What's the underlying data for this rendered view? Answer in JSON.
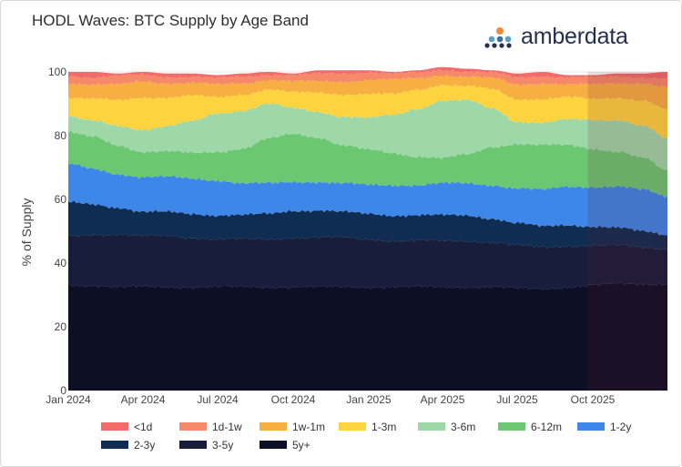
{
  "header": {
    "title": "HODL Waves: BTC Supply by Age Band",
    "brand_name": "amberdata",
    "brand_icon": "amberdata-logo-icon"
  },
  "chart_data": {
    "type": "area",
    "stacked": true,
    "title": "HODL Waves: BTC Supply by Age Band",
    "xlabel": "",
    "ylabel": "% of Supply",
    "ylim": [
      0,
      100
    ],
    "yticks": [
      0,
      20,
      40,
      60,
      80,
      100
    ],
    "xlim": [
      "2024-01-01",
      "2025-12-31"
    ],
    "xticks": [
      "Jan 2024",
      "Apr 2024",
      "Jul 2024",
      "Oct 2024",
      "Jan 2025",
      "Apr 2025",
      "Jul 2025",
      "Oct 2025"
    ],
    "legend_position": "bottom",
    "highlight_region": {
      "start": "2025-09-25",
      "end": "2025-12-31",
      "color": "#6b1a2a"
    },
    "x": [
      "2024-01-01",
      "2024-02-01",
      "2024-03-01",
      "2024-04-01",
      "2024-05-01",
      "2024-06-01",
      "2024-07-01",
      "2024-08-01",
      "2024-09-01",
      "2024-10-01",
      "2024-11-01",
      "2024-12-01",
      "2025-01-01",
      "2025-02-01",
      "2025-03-01",
      "2025-04-01",
      "2025-05-01",
      "2025-06-01",
      "2025-07-01",
      "2025-08-01",
      "2025-09-01",
      "2025-10-01",
      "2025-11-01",
      "2025-12-01",
      "2025-12-31"
    ],
    "series": [
      {
        "name": "5y+",
        "color": "#0d0f26",
        "values": [
          33,
          33,
          32.5,
          32.5,
          32.5,
          32.5,
          32.5,
          32.5,
          32.5,
          32.5,
          32.5,
          32.5,
          32.5,
          32.5,
          32.5,
          32.5,
          32.5,
          32.5,
          32,
          32,
          32.5,
          33,
          33.5,
          33.5,
          33.5
        ]
      },
      {
        "name": "3-5y",
        "color": "#171d3b",
        "values": [
          15.5,
          16,
          16.5,
          16,
          16,
          15.5,
          15,
          15,
          15,
          15.5,
          15.5,
          15.5,
          15,
          14.5,
          14.5,
          14.5,
          14.5,
          14,
          13.5,
          13,
          13,
          12.5,
          12,
          11.5,
          11
        ]
      },
      {
        "name": "2-3y",
        "color": "#0f2c52",
        "values": [
          10.5,
          9.5,
          8.5,
          7.5,
          7.5,
          7.5,
          7.5,
          7.5,
          8,
          8.5,
          8.5,
          8,
          8,
          8,
          8,
          8,
          8,
          7.5,
          7,
          6.5,
          6.5,
          6,
          5.5,
          5,
          4.5
        ]
      },
      {
        "name": "1-2y",
        "color": "#3d87e8",
        "values": [
          12,
          11,
          10.5,
          11,
          11,
          11,
          11,
          10,
          9.5,
          9,
          9,
          9,
          9,
          9.5,
          9.5,
          10,
          10,
          10.5,
          11,
          11.5,
          12,
          12.5,
          13,
          13,
          12
        ]
      },
      {
        "name": "6-12m",
        "color": "#6cc772",
        "values": [
          10,
          10,
          9,
          8,
          8,
          8,
          9,
          11,
          14,
          15,
          14,
          12,
          11,
          10,
          9,
          8,
          9,
          12,
          14,
          14,
          13,
          12,
          11,
          10,
          8
        ]
      },
      {
        "name": "3-6m",
        "color": "#9ed8a8",
        "values": [
          5,
          5,
          6,
          7,
          8,
          10,
          12,
          12,
          11,
          8,
          8,
          9,
          10,
          12,
          15,
          18,
          17,
          12,
          7,
          7,
          8,
          9,
          10,
          10,
          10
        ]
      },
      {
        "name": "1-3m",
        "color": "#fdd43f",
        "values": [
          6,
          7,
          8,
          10,
          9,
          8,
          5,
          5,
          4.5,
          5,
          6,
          7,
          7.5,
          6.5,
          6,
          5,
          4.5,
          6,
          7,
          7.5,
          7,
          6.5,
          7,
          8,
          9
        ]
      },
      {
        "name": "1w-1m",
        "color": "#f7ae42",
        "values": [
          4.5,
          4.5,
          5,
          5,
          4.5,
          4,
          4,
          3.5,
          3,
          3.5,
          3.5,
          4,
          4.5,
          4.5,
          3.5,
          3,
          3,
          3.5,
          4.5,
          5,
          4,
          4.5,
          4.5,
          5.5,
          7
        ]
      },
      {
        "name": "1d-1w",
        "color": "#f6896a",
        "values": [
          2.3,
          2.3,
          2.7,
          2,
          2,
          2,
          2,
          2,
          1.7,
          2,
          2.3,
          2.5,
          2.5,
          2,
          1.7,
          1.7,
          1.7,
          1.7,
          2.2,
          2.2,
          2.3,
          2.2,
          2,
          1.8,
          3
        ]
      },
      {
        "name": "<1d",
        "color": "#f26b6b",
        "values": [
          1.2,
          1.7,
          0.8,
          1,
          1,
          1,
          1,
          1,
          0.8,
          0.5,
          1.2,
          1,
          0.5,
          0.5,
          0.8,
          0.8,
          0.8,
          0.8,
          1.3,
          1.3,
          0.7,
          0.8,
          1,
          1.2,
          2
        ]
      }
    ]
  }
}
